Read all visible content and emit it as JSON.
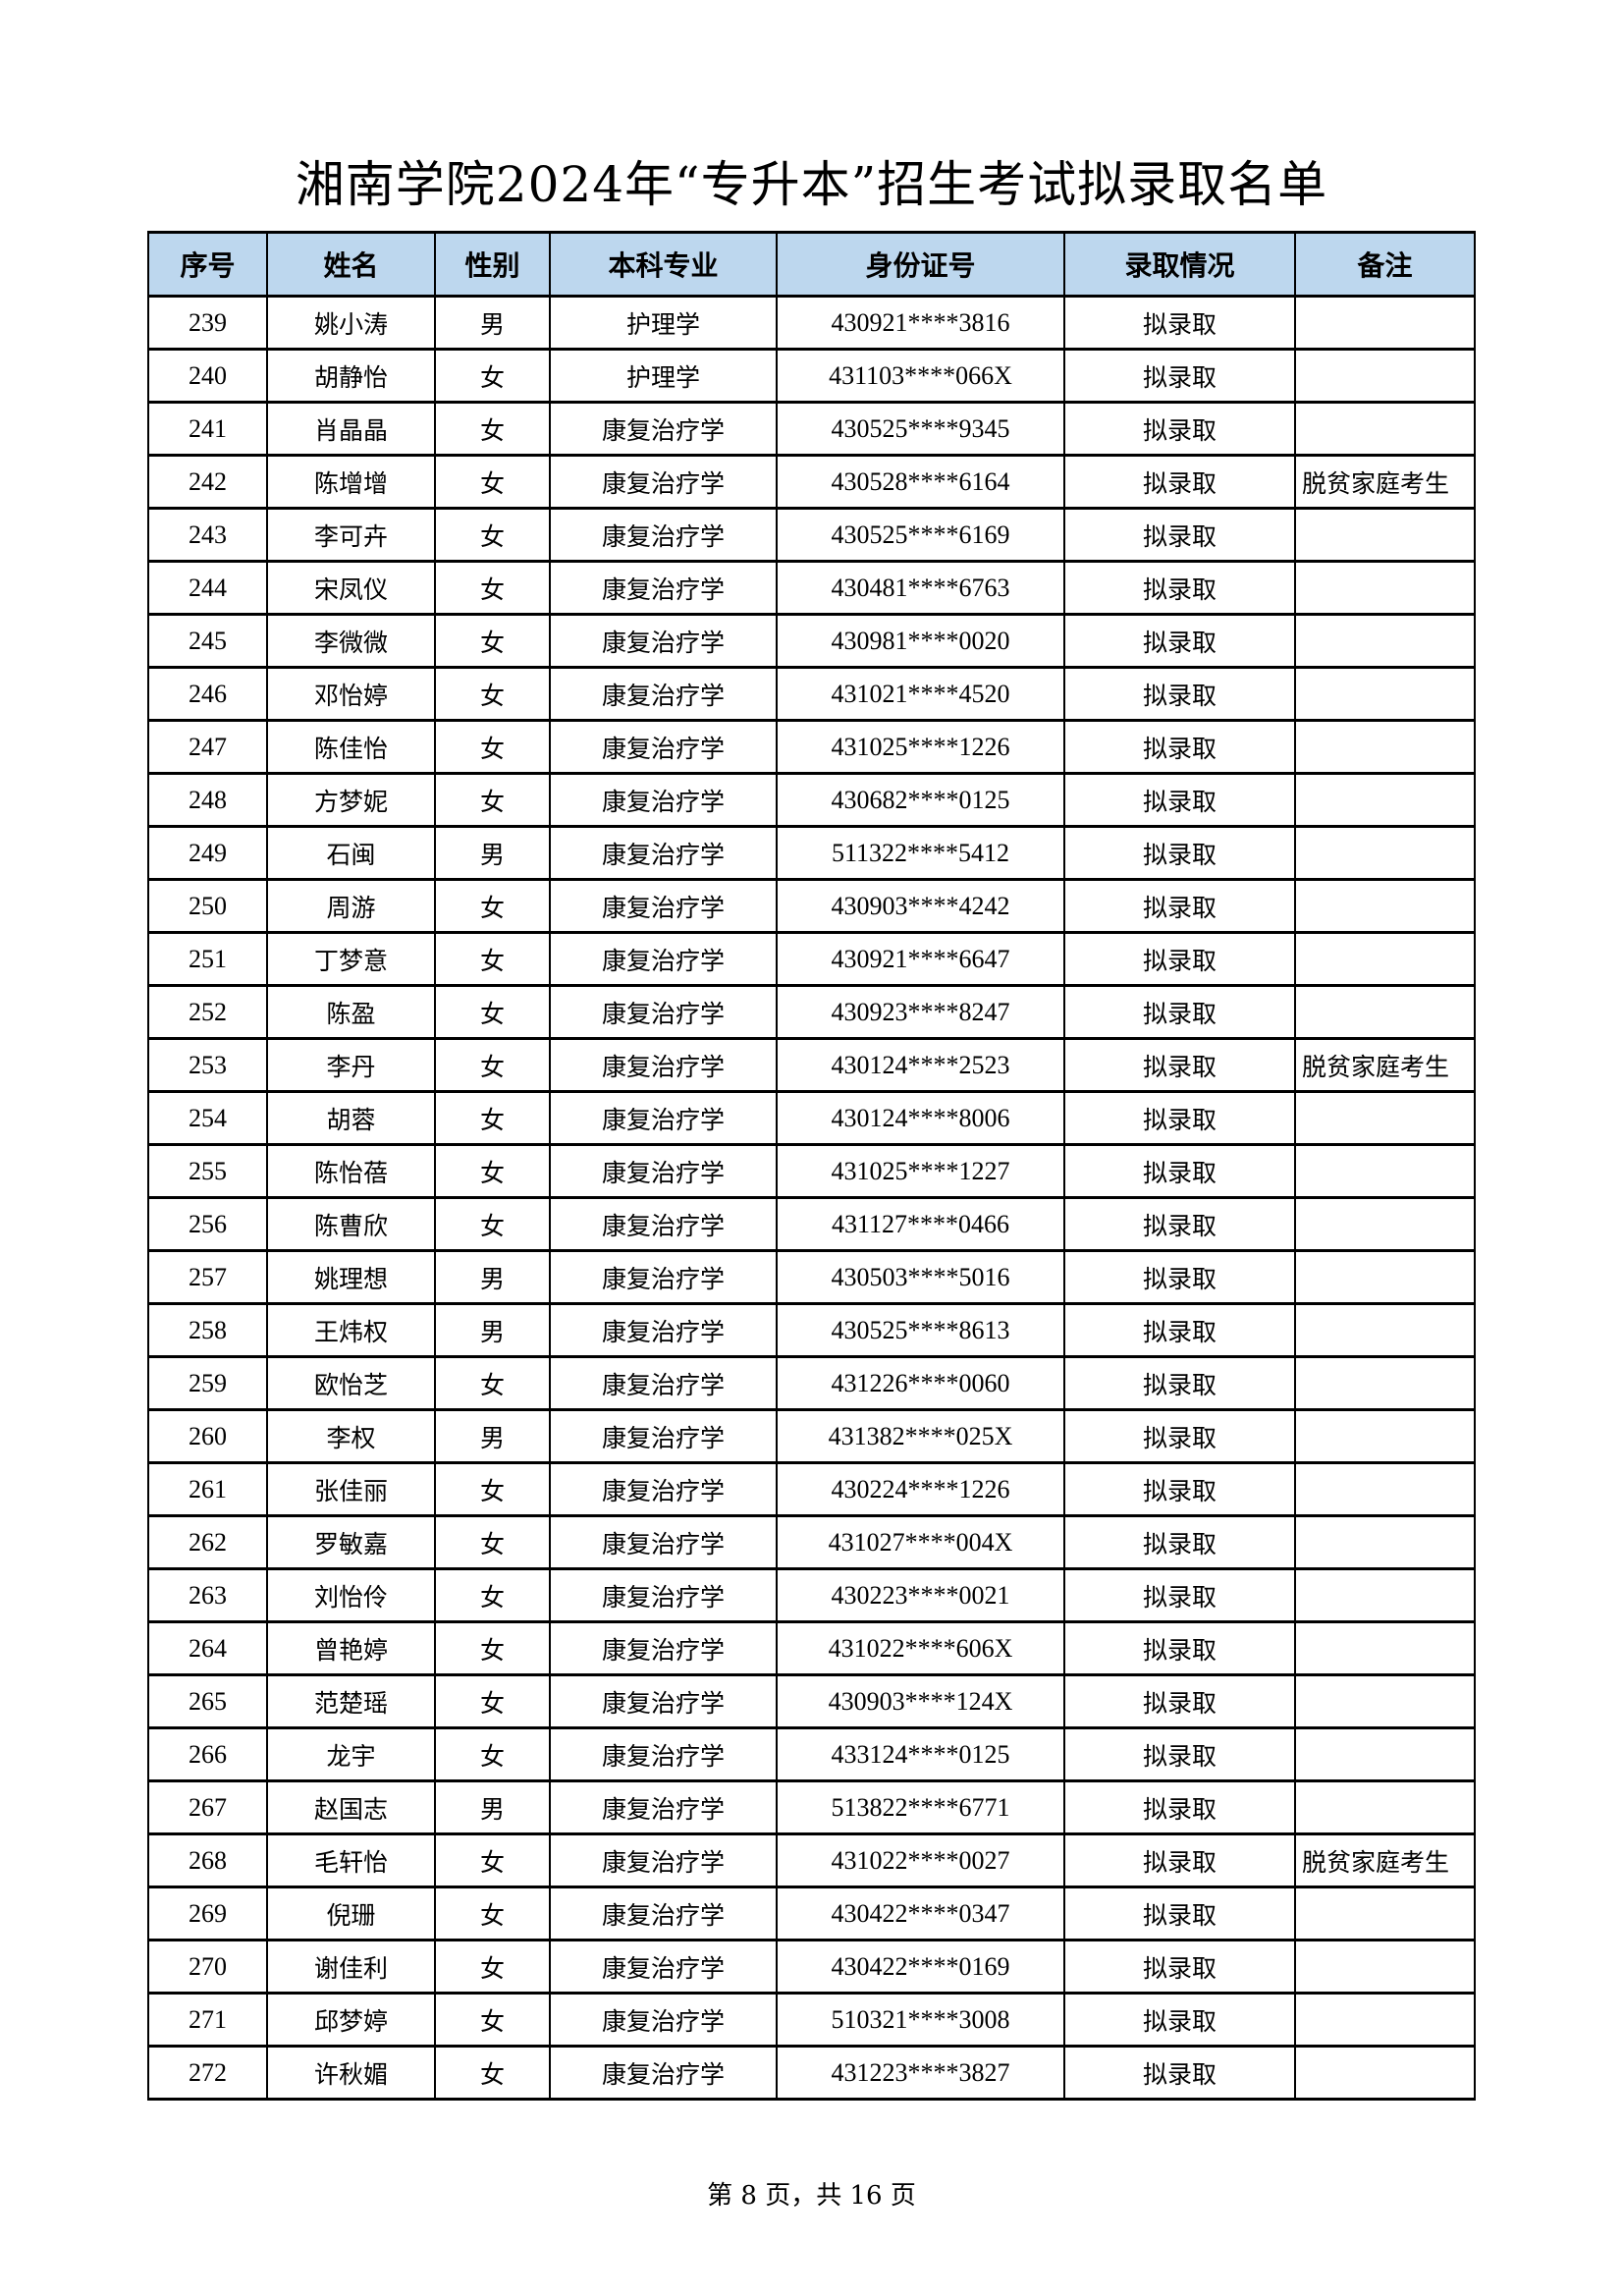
{
  "title": "湘南学院2024年“专升本”招生考试拟录取名单",
  "headers": [
    "序号",
    "姓名",
    "性别",
    "本科专业",
    "身份证号",
    "录取情况",
    "备注"
  ],
  "header_bg": "#bdd7ee",
  "rows": [
    [
      "239",
      "姚小涛",
      "男",
      "护理学",
      "430921****3816",
      "拟录取",
      ""
    ],
    [
      "240",
      "胡静怡",
      "女",
      "护理学",
      "431103****066X",
      "拟录取",
      ""
    ],
    [
      "241",
      "肖晶晶",
      "女",
      "康复治疗学",
      "430525****9345",
      "拟录取",
      ""
    ],
    [
      "242",
      "陈增增",
      "女",
      "康复治疗学",
      "430528****6164",
      "拟录取",
      "脱贫家庭考生"
    ],
    [
      "243",
      "李可卉",
      "女",
      "康复治疗学",
      "430525****6169",
      "拟录取",
      ""
    ],
    [
      "244",
      "宋凤仪",
      "女",
      "康复治疗学",
      "430481****6763",
      "拟录取",
      ""
    ],
    [
      "245",
      "李微微",
      "女",
      "康复治疗学",
      "430981****0020",
      "拟录取",
      ""
    ],
    [
      "246",
      "邓怡婷",
      "女",
      "康复治疗学",
      "431021****4520",
      "拟录取",
      ""
    ],
    [
      "247",
      "陈佳怡",
      "女",
      "康复治疗学",
      "431025****1226",
      "拟录取",
      ""
    ],
    [
      "248",
      "方梦妮",
      "女",
      "康复治疗学",
      "430682****0125",
      "拟录取",
      ""
    ],
    [
      "249",
      "石闽",
      "男",
      "康复治疗学",
      "511322****5412",
      "拟录取",
      ""
    ],
    [
      "250",
      "周游",
      "女",
      "康复治疗学",
      "430903****4242",
      "拟录取",
      ""
    ],
    [
      "251",
      "丁梦意",
      "女",
      "康复治疗学",
      "430921****6647",
      "拟录取",
      ""
    ],
    [
      "252",
      "陈盈",
      "女",
      "康复治疗学",
      "430923****8247",
      "拟录取",
      ""
    ],
    [
      "253",
      "李丹",
      "女",
      "康复治疗学",
      "430124****2523",
      "拟录取",
      "脱贫家庭考生"
    ],
    [
      "254",
      "胡蓉",
      "女",
      "康复治疗学",
      "430124****8006",
      "拟录取",
      ""
    ],
    [
      "255",
      "陈怡蓓",
      "女",
      "康复治疗学",
      "431025****1227",
      "拟录取",
      ""
    ],
    [
      "256",
      "陈曹欣",
      "女",
      "康复治疗学",
      "431127****0466",
      "拟录取",
      ""
    ],
    [
      "257",
      "姚理想",
      "男",
      "康复治疗学",
      "430503****5016",
      "拟录取",
      ""
    ],
    [
      "258",
      "王炜权",
      "男",
      "康复治疗学",
      "430525****8613",
      "拟录取",
      ""
    ],
    [
      "259",
      "欧怡芝",
      "女",
      "康复治疗学",
      "431226****0060",
      "拟录取",
      ""
    ],
    [
      "260",
      "李权",
      "男",
      "康复治疗学",
      "431382****025X",
      "拟录取",
      ""
    ],
    [
      "261",
      "张佳丽",
      "女",
      "康复治疗学",
      "430224****1226",
      "拟录取",
      ""
    ],
    [
      "262",
      "罗敏嘉",
      "女",
      "康复治疗学",
      "431027****004X",
      "拟录取",
      ""
    ],
    [
      "263",
      "刘怡伶",
      "女",
      "康复治疗学",
      "430223****0021",
      "拟录取",
      ""
    ],
    [
      "264",
      "曾艳婷",
      "女",
      "康复治疗学",
      "431022****606X",
      "拟录取",
      ""
    ],
    [
      "265",
      "范楚瑶",
      "女",
      "康复治疗学",
      "430903****124X",
      "拟录取",
      ""
    ],
    [
      "266",
      "龙宇",
      "女",
      "康复治疗学",
      "433124****0125",
      "拟录取",
      ""
    ],
    [
      "267",
      "赵国志",
      "男",
      "康复治疗学",
      "513822****6771",
      "拟录取",
      ""
    ],
    [
      "268",
      "毛轩怡",
      "女",
      "康复治疗学",
      "431022****0027",
      "拟录取",
      "脱贫家庭考生"
    ],
    [
      "269",
      "倪珊",
      "女",
      "康复治疗学",
      "430422****0347",
      "拟录取",
      ""
    ],
    [
      "270",
      "谢佳利",
      "女",
      "康复治疗学",
      "430422****0169",
      "拟录取",
      ""
    ],
    [
      "271",
      "邱梦婷",
      "女",
      "康复治疗学",
      "510321****3008",
      "拟录取",
      ""
    ],
    [
      "272",
      "许秋媚",
      "女",
      "康复治疗学",
      "431223****3827",
      "拟录取",
      ""
    ]
  ],
  "footer": "第 8 页，共 16 页"
}
